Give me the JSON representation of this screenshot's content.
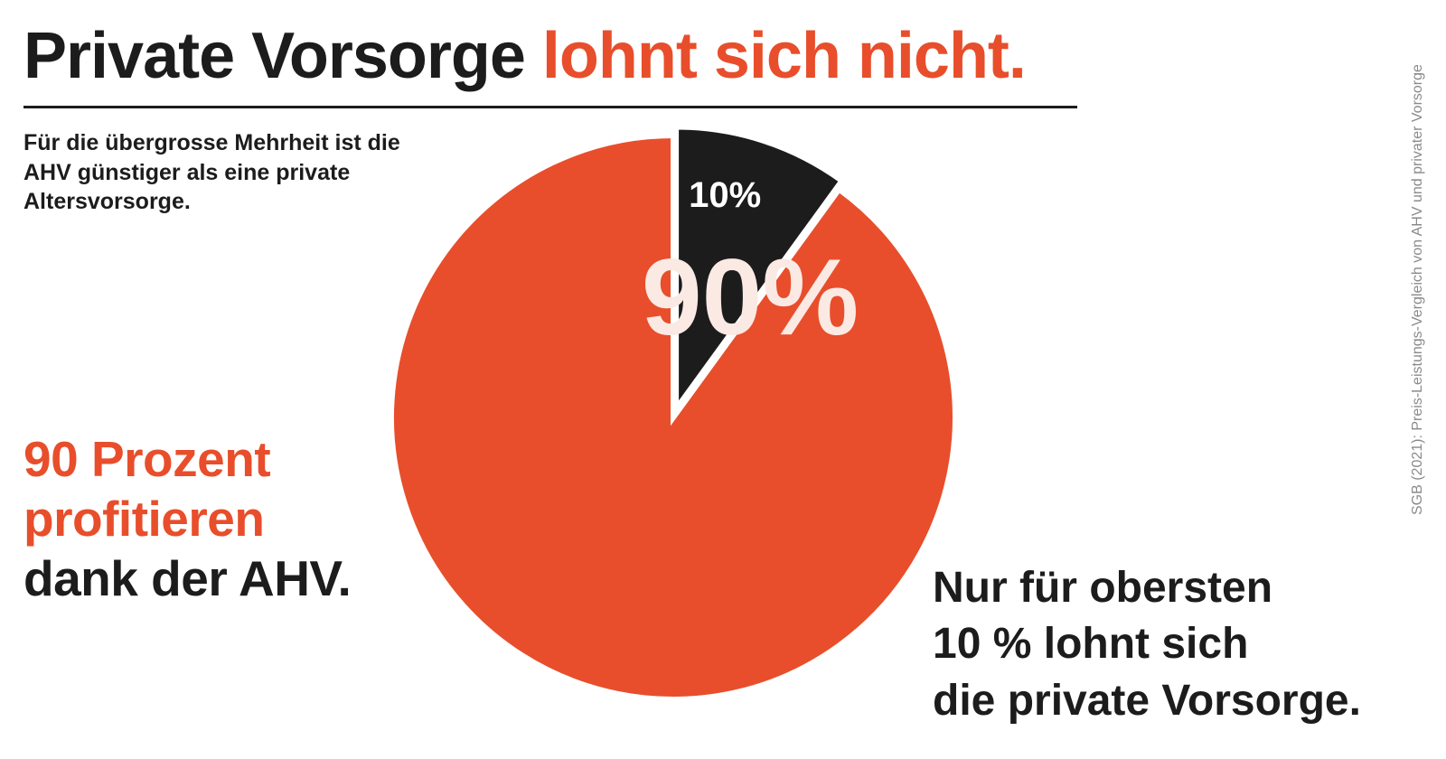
{
  "title": {
    "part1": "Private Vorsorge",
    "part2": "lohnt sich nicht."
  },
  "subtitle": "Für die übergrosse Mehrheit ist die AHV günstiger als eine private Altersvorsorge.",
  "left_callout": {
    "line1": "90 Prozent",
    "line2": "profitieren",
    "line3": "dank der AHV."
  },
  "right_callout": {
    "line1": "Nur für obersten",
    "line2": "10 % lohnt sich",
    "line3": "die private Vorsorge."
  },
  "source": "SGB (2021): Preis-Leistungs-Vergleich von AHV und privater Vorsorge",
  "colors": {
    "accent": "#e84e2b",
    "dark": "#1c1c1c",
    "label_light": "#fbe9e4"
  },
  "chart_data": {
    "type": "pie",
    "slices": [
      {
        "label": "90%",
        "value": 90,
        "color": "#e84e2b"
      },
      {
        "label": "10%",
        "value": 10,
        "color": "#1c1c1c",
        "exploded": true
      }
    ]
  }
}
